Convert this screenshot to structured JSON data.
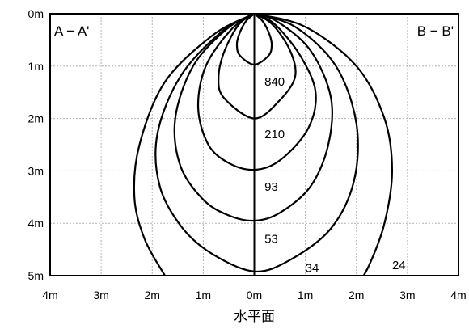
{
  "chart_data": {
    "type": "line",
    "title": "",
    "xlabel": "水平面",
    "ylabel": "",
    "x_tick_labels": [
      "4m",
      "3m",
      "2m",
      "1m",
      "0m",
      "1m",
      "2m",
      "3m",
      "4m"
    ],
    "y_tick_labels": [
      "0m",
      "1m",
      "2m",
      "3m",
      "4m",
      "5m"
    ],
    "xlim": [
      -4,
      4
    ],
    "ylim": [
      0,
      5
    ],
    "grid": true,
    "section_labels": {
      "left": "A − A'",
      "right": "B − B'"
    },
    "series": [
      {
        "name": "840",
        "label_at": [
          0.2,
          1.3
        ],
        "points": [
          [
            0,
            0
          ],
          [
            -0.17,
            0.15
          ],
          [
            -0.3,
            0.4
          ],
          [
            -0.34,
            0.6
          ],
          [
            -0.28,
            0.8
          ],
          [
            0,
            0.97
          ],
          [
            0.28,
            0.8
          ],
          [
            0.34,
            0.6
          ],
          [
            0.3,
            0.4
          ],
          [
            0.17,
            0.15
          ],
          [
            0,
            0
          ]
        ]
      },
      {
        "name": "210",
        "label_at": [
          0.2,
          2.3
        ],
        "points": [
          [
            0,
            0
          ],
          [
            -0.3,
            0.2
          ],
          [
            -0.58,
            0.7
          ],
          [
            -0.7,
            1.2
          ],
          [
            -0.6,
            1.6
          ],
          [
            0,
            2.0
          ],
          [
            0.5,
            1.65
          ],
          [
            0.8,
            1.2
          ],
          [
            0.7,
            0.7
          ],
          [
            0.35,
            0.2
          ],
          [
            0,
            0
          ]
        ]
      },
      {
        "name": "93",
        "label_at": [
          0.2,
          3.3
        ],
        "points": [
          [
            0,
            0
          ],
          [
            -0.45,
            0.3
          ],
          [
            -0.95,
            1.0
          ],
          [
            -1.1,
            1.8
          ],
          [
            -0.9,
            2.5
          ],
          [
            -0.5,
            2.85
          ],
          [
            0,
            2.98
          ],
          [
            0.5,
            2.8
          ],
          [
            1.05,
            2.2
          ],
          [
            1.2,
            1.5
          ],
          [
            0.9,
            0.8
          ],
          [
            0.4,
            0.2
          ],
          [
            0,
            0
          ]
        ]
      },
      {
        "name": "53",
        "label_at": [
          0.2,
          4.3
        ],
        "points": [
          [
            0,
            0
          ],
          [
            -0.55,
            0.3
          ],
          [
            -1.2,
            1.0
          ],
          [
            -1.55,
            2.0
          ],
          [
            -1.45,
            2.9
          ],
          [
            -1.0,
            3.55
          ],
          [
            -0.5,
            3.85
          ],
          [
            0,
            3.95
          ],
          [
            0.5,
            3.8
          ],
          [
            1.1,
            3.3
          ],
          [
            1.45,
            2.5
          ],
          [
            1.5,
            1.6
          ],
          [
            1.1,
            0.7
          ],
          [
            0.45,
            0.15
          ],
          [
            0,
            0
          ]
        ]
      },
      {
        "name": "34",
        "label_at": [
          1.0,
          4.85
        ],
        "points": [
          [
            0,
            0
          ],
          [
            -0.65,
            0.35
          ],
          [
            -1.45,
            1.2
          ],
          [
            -1.9,
            2.3
          ],
          [
            -1.85,
            3.3
          ],
          [
            -1.4,
            4.1
          ],
          [
            -0.8,
            4.6
          ],
          [
            0,
            4.92
          ],
          [
            0.7,
            4.7
          ],
          [
            1.5,
            4.1
          ],
          [
            1.95,
            3.2
          ],
          [
            2.0,
            2.1
          ],
          [
            1.6,
            1.0
          ],
          [
            0.8,
            0.25
          ],
          [
            0,
            0
          ]
        ]
      },
      {
        "name": "24",
        "label_at": [
          2.7,
          4.8
        ],
        "points": [
          [
            0,
            0
          ],
          [
            -0.8,
            0.4
          ],
          [
            -1.75,
            1.3
          ],
          [
            -2.25,
            2.5
          ],
          [
            -2.35,
            3.5
          ],
          [
            -2.15,
            4.3
          ],
          [
            -1.75,
            5.0
          ],
          [
            -1.55,
            5.3
          ],
          [
            null,
            null
          ],
          [
            1.95,
            5.3
          ],
          [
            2.25,
            4.8
          ],
          [
            2.55,
            4.0
          ],
          [
            2.7,
            3.0
          ],
          [
            2.55,
            2.0
          ],
          [
            2.0,
            1.0
          ],
          [
            1.0,
            0.25
          ],
          [
            0,
            0
          ]
        ]
      }
    ]
  }
}
